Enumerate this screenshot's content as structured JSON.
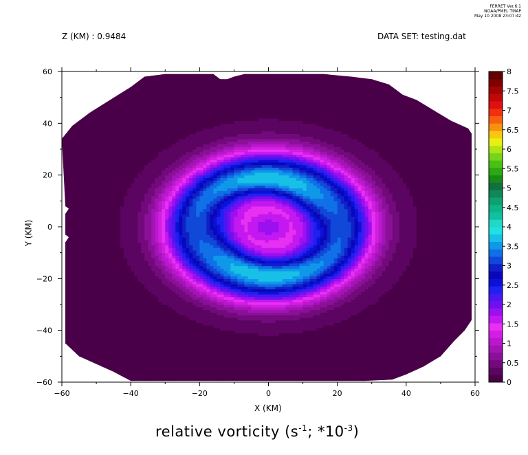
{
  "header": {
    "z_label": "Z (KM) : 0.9484",
    "dataset_label": "DATA SET: testing.dat",
    "stamp_line1": "FERRET  Ver.6.1",
    "stamp_line2": "NOAA/PMEL TMAP",
    "stamp_line3": "May 10 2008 23:07:42"
  },
  "chart_data": {
    "type": "heatmap",
    "title": "relative vorticity (s",
    "title_sup1": "-1",
    "title_mid": "; *10",
    "title_sup2": "-3",
    "title_end": ")",
    "xlabel": "X (KM)",
    "ylabel": "Y (KM)",
    "xlim": [
      -60,
      60
    ],
    "ylim": [
      -60,
      60
    ],
    "x_ticks": [
      -60,
      -40,
      -20,
      0,
      20,
      40,
      60
    ],
    "x_tick_labels": [
      "−60",
      "−40",
      "−20",
      "0",
      "20",
      "40",
      "60"
    ],
    "y_ticks": [
      -60,
      -40,
      -20,
      0,
      20,
      40,
      60
    ],
    "y_tick_labels": [
      "−60",
      "−40",
      "−20",
      "0",
      "20",
      "40",
      "60"
    ],
    "colorbar": {
      "levels": [
        0,
        0.25,
        0.5,
        0.75,
        1,
        1.25,
        1.5,
        1.75,
        2,
        2.25,
        2.5,
        2.75,
        3,
        3.25,
        3.5,
        3.75,
        4,
        4.25,
        4.5,
        4.75,
        5,
        5.25,
        5.5,
        5.75,
        6,
        6.25,
        6.5,
        6.75,
        7,
        7.25,
        7.5,
        7.75,
        8
      ],
      "tick_labels": [
        "0",
        "0.5",
        "1",
        "1.5",
        "2",
        "2.5",
        "3",
        "3.5",
        "4",
        "4.5",
        "5",
        "5.5",
        "6",
        "6.5",
        "7",
        "7.5",
        "8"
      ],
      "colors": [
        "#4a0048",
        "#5c0462",
        "#720a7c",
        "#8a1098",
        "#a214b4",
        "#ba18cc",
        "#d21ee4",
        "#e830f2",
        "#f040f0",
        "#c418f0",
        "#9c10f0",
        "#7010f0",
        "#4818f0",
        "#2020f0",
        "#0c10d8",
        "#0808b8",
        "#1020c8",
        "#1048d8",
        "#1070e8",
        "#1098e8",
        "#18c0e8",
        "#20e0e0",
        "#20d8c8",
        "#10c0a0",
        "#0cb488",
        "#10a070",
        "#108858",
        "#107040",
        "#1a8a14",
        "#2ca812",
        "#48c014",
        "#78d418",
        "#b0e418",
        "#e8f010",
        "#f8c810",
        "#f89010",
        "#f86010",
        "#f03010",
        "#e01010",
        "#c00808",
        "#a00404",
        "#800000",
        "#600000"
      ],
      "colors_used_bands": [
        "#4a0048",
        "#5c0462",
        "#720a7c",
        "#8a1098",
        "#a214b4",
        "#ba18cc",
        "#d21ee4",
        "#e830f2",
        "#c418f0",
        "#9c10f0",
        "#7010f0",
        "#4818f0",
        "#2020f0",
        "#0c10d8",
        "#0808b8",
        "#1020c8",
        "#1048d8",
        "#1070e8",
        "#1098e8",
        "#18c0e8",
        "#20e0e0",
        "#20d8c8",
        "#10c0a0",
        "#0cb488",
        "#10a070",
        "#108858",
        "#107040",
        "#1a8a14",
        "#2ca812",
        "#48c014",
        "#78d418",
        "#b0e418",
        "#e8f010",
        "#f8c810",
        "#f89010",
        "#f86010",
        "#f03010",
        "#e01010",
        "#c00808",
        "#a00404",
        "#800000",
        "#600000"
      ]
    },
    "field": {
      "description_of_structure": "",
      "outer_value": 0.2,
      "ring_center_radius_km": 30,
      "ring_value_peak": 4.6,
      "core_radius_km": 10,
      "core_value": 2.4
    }
  }
}
